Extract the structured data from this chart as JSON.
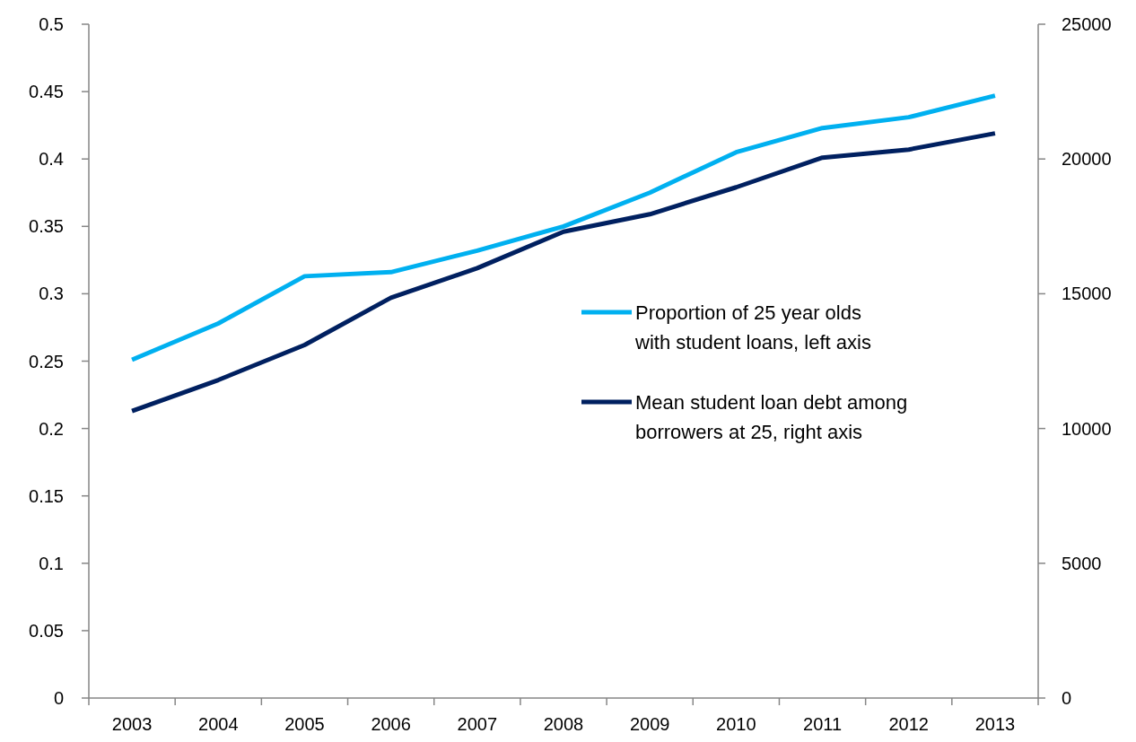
{
  "chart_data": {
    "type": "line",
    "categories": [
      "2003",
      "2004",
      "2005",
      "2006",
      "2007",
      "2008",
      "2009",
      "2010",
      "2011",
      "2012",
      "2013"
    ],
    "series": [
      {
        "name": "Proportion of 25 year olds with student loans, left axis",
        "color": "#00b0f0",
        "values": [
          0.251,
          0.278,
          0.313,
          0.316,
          0.332,
          0.35,
          0.375,
          0.405,
          0.423,
          0.431,
          0.447
        ]
      },
      {
        "name": "Mean student loan debt among borrowers at 25, right axis",
        "color": "#002060",
        "axis": "y2",
        "values": [
          10650,
          11800,
          13100,
          14850,
          15950,
          17300,
          17950,
          18950,
          20050,
          20350,
          20950
        ]
      }
    ],
    "ylim": [
      0,
      0.5
    ],
    "yticks": [
      0,
      0.05,
      0.1,
      0.15,
      0.2,
      0.25,
      0.3,
      0.35,
      0.4,
      0.45,
      0.5
    ],
    "y2lim": [
      0,
      25000
    ],
    "y2ticks": [
      0,
      5000,
      10000,
      15000,
      20000,
      25000
    ],
    "grid": false,
    "legend": "right",
    "marker": "none",
    "line_style": "solid"
  }
}
